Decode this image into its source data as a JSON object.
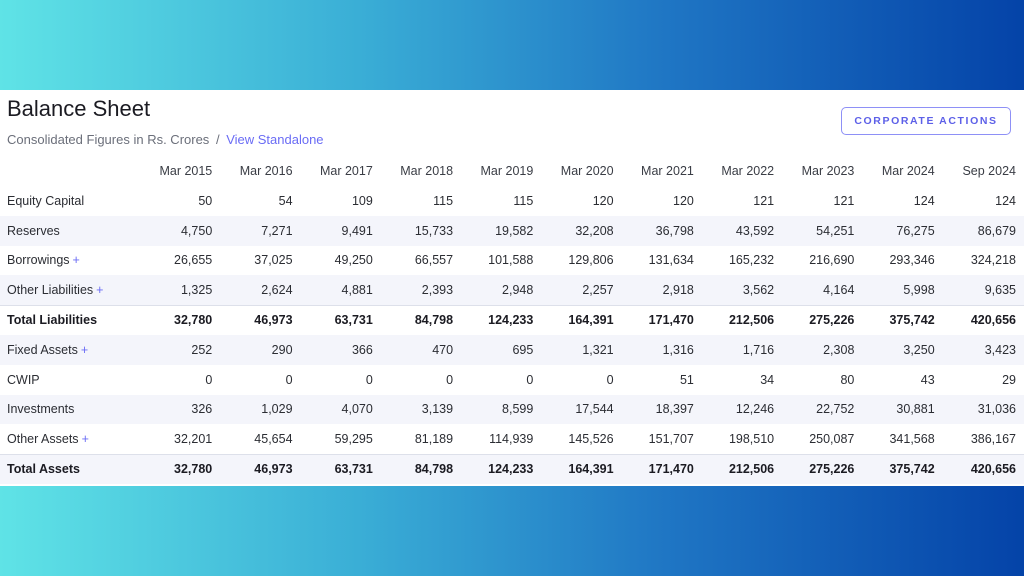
{
  "header": {
    "title": "Balance Sheet",
    "subtitle": "Consolidated Figures in Rs. Crores",
    "separator": "/",
    "link": "View Standalone",
    "button": "CORPORATE ACTIONS"
  },
  "table": {
    "columns": [
      "Mar 2015",
      "Mar 2016",
      "Mar 2017",
      "Mar 2018",
      "Mar 2019",
      "Mar 2020",
      "Mar 2021",
      "Mar 2022",
      "Mar 2023",
      "Mar 2024",
      "Sep 2024"
    ],
    "rows": [
      {
        "label": "Equity Capital",
        "expandable": false,
        "total": false,
        "values": [
          "50",
          "54",
          "109",
          "115",
          "115",
          "120",
          "120",
          "121",
          "121",
          "124",
          "124"
        ]
      },
      {
        "label": "Reserves",
        "expandable": false,
        "total": false,
        "values": [
          "4,750",
          "7,271",
          "9,491",
          "15,733",
          "19,582",
          "32,208",
          "36,798",
          "43,592",
          "54,251",
          "76,275",
          "86,679"
        ]
      },
      {
        "label": "Borrowings",
        "expandable": true,
        "total": false,
        "values": [
          "26,655",
          "37,025",
          "49,250",
          "66,557",
          "101,588",
          "129,806",
          "131,634",
          "165,232",
          "216,690",
          "293,346",
          "324,218"
        ]
      },
      {
        "label": "Other Liabilities",
        "expandable": true,
        "total": false,
        "values": [
          "1,325",
          "2,624",
          "4,881",
          "2,393",
          "2,948",
          "2,257",
          "2,918",
          "3,562",
          "4,164",
          "5,998",
          "9,635"
        ]
      },
      {
        "label": "Total Liabilities",
        "expandable": false,
        "total": true,
        "values": [
          "32,780",
          "46,973",
          "63,731",
          "84,798",
          "124,233",
          "164,391",
          "171,470",
          "212,506",
          "275,226",
          "375,742",
          "420,656"
        ]
      },
      {
        "label": "Fixed Assets",
        "expandable": true,
        "total": false,
        "values": [
          "252",
          "290",
          "366",
          "470",
          "695",
          "1,321",
          "1,316",
          "1,716",
          "2,308",
          "3,250",
          "3,423"
        ]
      },
      {
        "label": "CWIP",
        "expandable": false,
        "total": false,
        "values": [
          "0",
          "0",
          "0",
          "0",
          "0",
          "0",
          "51",
          "34",
          "80",
          "43",
          "29"
        ]
      },
      {
        "label": "Investments",
        "expandable": false,
        "total": false,
        "values": [
          "326",
          "1,029",
          "4,070",
          "3,139",
          "8,599",
          "17,544",
          "18,397",
          "12,246",
          "22,752",
          "30,881",
          "31,036"
        ]
      },
      {
        "label": "Other Assets",
        "expandable": true,
        "total": false,
        "values": [
          "32,201",
          "45,654",
          "59,295",
          "81,189",
          "114,939",
          "145,526",
          "151,707",
          "198,510",
          "250,087",
          "341,568",
          "386,167"
        ]
      },
      {
        "label": "Total Assets",
        "expandable": false,
        "total": true,
        "values": [
          "32,780",
          "46,973",
          "63,731",
          "84,798",
          "124,233",
          "164,391",
          "171,470",
          "212,506",
          "275,226",
          "375,742",
          "420,656"
        ]
      }
    ],
    "expand_symbol": "+"
  },
  "colors": {
    "accent": "#6a6cf5",
    "row_shade": "#f4f5fb",
    "gradient_start": "#5fe3e6",
    "gradient_end": "#0443a8"
  }
}
